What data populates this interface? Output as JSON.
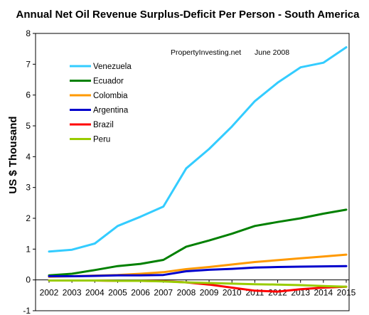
{
  "chart_data": {
    "type": "line",
    "title": "Annual Net Oil Revenue Surplus-Deficit Per Person - South America",
    "ylabel": "US $ Thousand",
    "xlabel": "",
    "annotations": [
      "PropertyInvesting.net",
      "June 2008"
    ],
    "x": [
      2002,
      2003,
      2004,
      2005,
      2006,
      2007,
      2008,
      2009,
      2010,
      2011,
      2012,
      2013,
      2014,
      2015
    ],
    "xticks": [
      "2002",
      "2003",
      "2004",
      "2005",
      "2006",
      "2007",
      "2008",
      "2009",
      "2010",
      "2011",
      "2012",
      "2013",
      "2014",
      "2015"
    ],
    "yticks": [
      "-1",
      "0",
      "1",
      "2",
      "3",
      "4",
      "5",
      "6",
      "7",
      "8"
    ],
    "ylim": [
      -1,
      8
    ],
    "grid": false,
    "legend_position": "top-left",
    "series": [
      {
        "name": "Venezuela",
        "color": "#33CCFF",
        "values": [
          0.92,
          0.98,
          1.18,
          1.75,
          2.05,
          2.38,
          3.62,
          4.25,
          4.98,
          5.8,
          6.4,
          6.9,
          7.05,
          7.55
        ]
      },
      {
        "name": "Ecuador",
        "color": "#008000",
        "values": [
          0.15,
          0.2,
          0.32,
          0.45,
          0.52,
          0.65,
          1.08,
          1.28,
          1.5,
          1.75,
          1.88,
          2.0,
          2.15,
          2.28
        ]
      },
      {
        "name": "Colombia",
        "color": "#FF9900",
        "values": [
          0.1,
          0.12,
          0.14,
          0.16,
          0.2,
          0.25,
          0.35,
          0.42,
          0.5,
          0.58,
          0.64,
          0.7,
          0.76,
          0.82
        ]
      },
      {
        "name": "Argentina",
        "color": "#0000CC",
        "values": [
          0.12,
          0.12,
          0.13,
          0.15,
          0.15,
          0.16,
          0.28,
          0.33,
          0.36,
          0.4,
          0.42,
          0.43,
          0.44,
          0.45
        ]
      },
      {
        "name": "Brazil",
        "color": "#FF0000",
        "values": [
          -0.02,
          -0.02,
          -0.02,
          -0.03,
          -0.03,
          -0.04,
          -0.08,
          -0.15,
          -0.25,
          -0.35,
          -0.38,
          -0.3,
          -0.25,
          -0.22
        ]
      },
      {
        "name": "Peru",
        "color": "#99CC00",
        "values": [
          -0.02,
          -0.02,
          -0.02,
          -0.03,
          -0.03,
          -0.05,
          -0.08,
          -0.1,
          -0.12,
          -0.14,
          -0.15,
          -0.17,
          -0.2,
          -0.22
        ]
      }
    ]
  }
}
